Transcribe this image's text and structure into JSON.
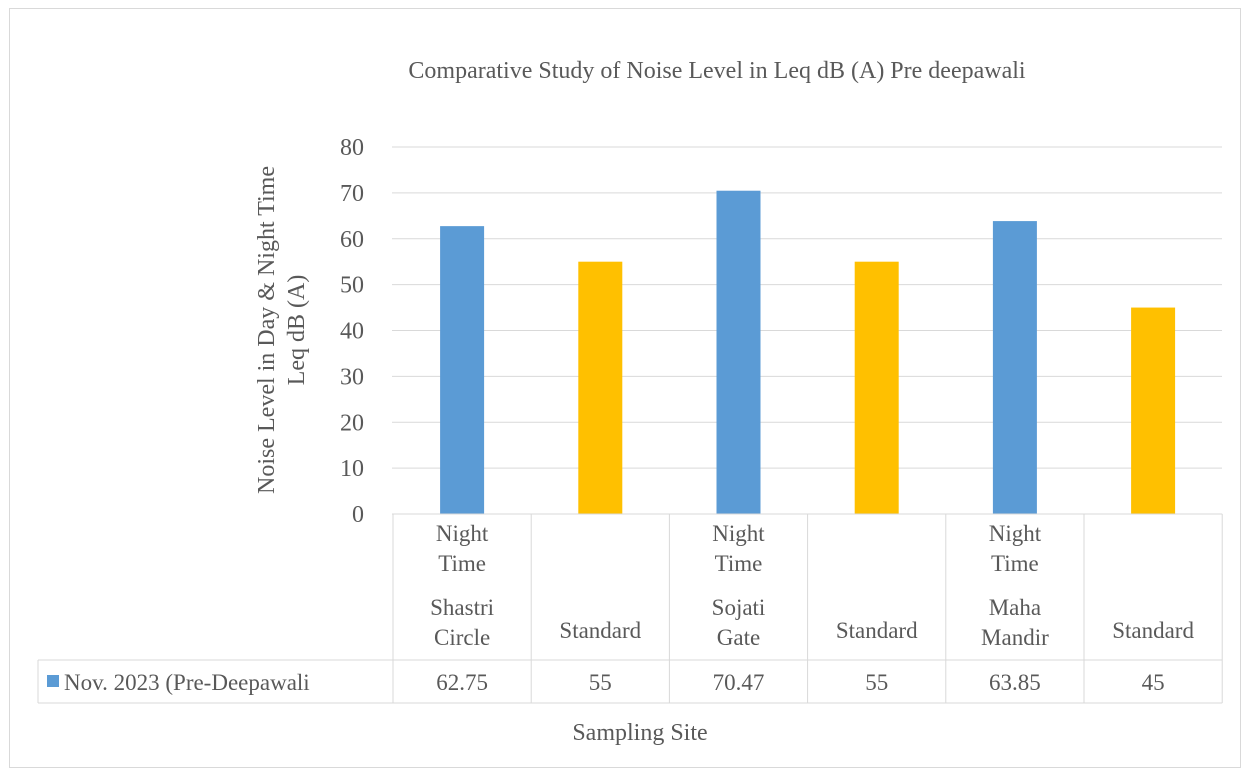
{
  "chart_data": {
    "type": "bar",
    "title": "Comparative Study of Noise Level in Leq dB (A) Pre deepawali",
    "xlabel": "Sampling Site",
    "ylabel_lines": [
      "Noise Level in Day & Night Time",
      "Leq dB (A)"
    ],
    "ylim": [
      0,
      80
    ],
    "yticks": [
      0,
      10,
      20,
      30,
      40,
      50,
      60,
      70,
      80
    ],
    "grid": true,
    "legend_placement": "data-table",
    "categories": [
      {
        "group": "Shastri Circle",
        "sub": "Night Time",
        "group_lines": [
          "Shastri",
          "Circle"
        ],
        "sub_lines": [
          "Night",
          "Time"
        ]
      },
      {
        "group": "Standard",
        "sub": "",
        "group_lines": [
          "Standard"
        ],
        "sub_lines": []
      },
      {
        "group": "Sojati Gate",
        "sub": "Night Time",
        "group_lines": [
          "Sojati",
          "Gate"
        ],
        "sub_lines": [
          "Night",
          "Time"
        ]
      },
      {
        "group": "Standard",
        "sub": "",
        "group_lines": [
          "Standard"
        ],
        "sub_lines": []
      },
      {
        "group": "Maha Mandir",
        "sub": "Night Time",
        "group_lines": [
          "Maha",
          "Mandir"
        ],
        "sub_lines": [
          "Night",
          "Time"
        ]
      },
      {
        "group": "Standard",
        "sub": "",
        "group_lines": [
          "Standard"
        ],
        "sub_lines": []
      }
    ],
    "series": [
      {
        "name": "Nov. 2023 (Pre-Deepawali",
        "values": [
          62.75,
          55,
          70.47,
          55,
          63.85,
          45
        ],
        "value_labels": [
          "62.75",
          "55",
          "70.47",
          "55",
          "63.85",
          "45"
        ],
        "colors": [
          "#5b9bd5",
          "#ffc000",
          "#5b9bd5",
          "#ffc000",
          "#5b9bd5",
          "#ffc000"
        ]
      }
    ],
    "legend_color": "#5b9bd5"
  }
}
